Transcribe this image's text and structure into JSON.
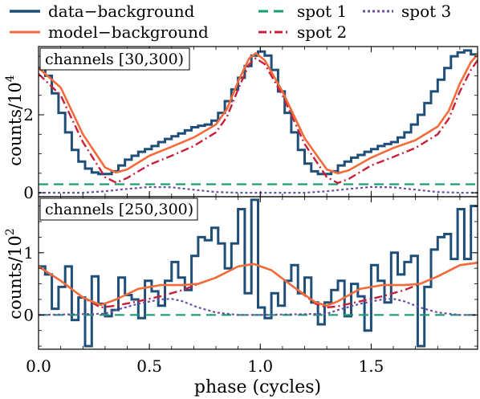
{
  "legend": {
    "placement": "top",
    "entries": [
      {
        "key": "data",
        "label": "data−background",
        "color": "#1f4e79",
        "style": "steps"
      },
      {
        "key": "model",
        "label": "model−background",
        "color": "#f26b3a",
        "style": "solid"
      },
      {
        "key": "spot1",
        "label": "spot 1",
        "color": "#1a9c74",
        "style": "dashed"
      },
      {
        "key": "spot2",
        "label": "spot 2",
        "color": "#c81f3a",
        "style": "dashdot"
      },
      {
        "key": "spot3",
        "label": "spot 3",
        "color": "#6a4fa5",
        "style": "dotted"
      }
    ]
  },
  "xlabel": "phase (cycles)",
  "chart_data": [
    {
      "type": "line",
      "panel_label": "channels [30,300)",
      "ylabel": "counts/10",
      "ylabel_exp": "4",
      "xlim": [
        0.0,
        1.98
      ],
      "ylim": [
        -0.1,
        3.75
      ],
      "yticks": [
        {
          "value": 0,
          "label": "0"
        },
        {
          "value": 2,
          "label": "2"
        }
      ],
      "xticks": [
        {
          "value": 0.0,
          "label": "0.0"
        },
        {
          "value": 0.5,
          "label": "0.5"
        },
        {
          "value": 1.0,
          "label": "1.0"
        },
        {
          "value": 1.5,
          "label": "1.5"
        }
      ],
      "data_steps": {
        "x0": 0.0,
        "dx": 0.03,
        "values": [
          3.2,
          3.0,
          2.55,
          2.05,
          1.55,
          1.1,
          0.8,
          0.62,
          0.52,
          0.48,
          0.48,
          0.55,
          0.7,
          0.85,
          0.95,
          1.05,
          1.12,
          1.2,
          1.3,
          1.38,
          1.45,
          1.52,
          1.6,
          1.68,
          1.72,
          1.75,
          1.85,
          2.05,
          2.35,
          2.65,
          2.95,
          3.25,
          3.52,
          3.62,
          3.52,
          3.15,
          2.6,
          2.05,
          1.55,
          1.1,
          0.75,
          0.55,
          0.48,
          0.48,
          0.55,
          0.7,
          0.8,
          0.9,
          0.97,
          1.05,
          1.12,
          1.2,
          1.25,
          1.3,
          1.42,
          1.55,
          1.75,
          2.0,
          2.3,
          2.6,
          2.9,
          3.2,
          3.5,
          3.6,
          3.65,
          3.55
        ]
      },
      "model": {
        "x": [
          0.0,
          0.1,
          0.2,
          0.3,
          0.35,
          0.4,
          0.5,
          0.6,
          0.7,
          0.8,
          0.85,
          0.9,
          0.95,
          0.98,
          1.02,
          1.1,
          1.2,
          1.3,
          1.35,
          1.4,
          1.5,
          1.6,
          1.7,
          1.8,
          1.85,
          1.9,
          1.95,
          1.98
        ],
        "y": [
          3.2,
          2.7,
          1.5,
          0.65,
          0.52,
          0.6,
          0.95,
          1.18,
          1.42,
          1.75,
          2.15,
          2.85,
          3.45,
          3.58,
          3.4,
          2.6,
          1.4,
          0.6,
          0.5,
          0.58,
          0.9,
          1.15,
          1.35,
          1.7,
          2.1,
          2.8,
          3.35,
          3.55
        ]
      },
      "spot1": {
        "x": [
          0.0,
          1.98
        ],
        "y": [
          0.22,
          0.22
        ]
      },
      "spot2": {
        "x": [
          0.0,
          0.1,
          0.2,
          0.3,
          0.35,
          0.4,
          0.5,
          0.6,
          0.7,
          0.8,
          0.85,
          0.9,
          0.95,
          0.98,
          1.02,
          1.1,
          1.2,
          1.3,
          1.35,
          1.4,
          1.5,
          1.6,
          1.7,
          1.8,
          1.85,
          1.9,
          1.95,
          1.98
        ],
        "y": [
          3.05,
          2.5,
          1.3,
          0.4,
          0.26,
          0.38,
          0.72,
          0.95,
          1.2,
          1.55,
          1.95,
          2.65,
          3.3,
          3.45,
          3.3,
          2.5,
          1.25,
          0.4,
          0.25,
          0.36,
          0.7,
          0.92,
          1.15,
          1.5,
          1.9,
          2.6,
          3.15,
          3.4
        ]
      },
      "spot3": {
        "x": [
          0.0,
          0.2,
          0.3,
          0.4,
          0.5,
          0.6,
          0.7,
          0.8,
          0.9,
          1.0,
          1.2,
          1.3,
          1.4,
          1.5,
          1.6,
          1.7,
          1.8,
          1.9,
          1.98
        ],
        "y": [
          0.0,
          0.0,
          0.04,
          0.1,
          0.15,
          0.14,
          0.08,
          0.02,
          0.0,
          0.0,
          0.0,
          0.04,
          0.1,
          0.15,
          0.14,
          0.08,
          0.02,
          0.0,
          0.0
        ]
      }
    },
    {
      "type": "line",
      "panel_label": "channels [250,300)",
      "ylabel": "counts/10",
      "ylabel_exp": "2",
      "xlim": [
        0.0,
        1.98
      ],
      "ylim": [
        -0.55,
        1.9
      ],
      "yticks": [
        {
          "value": 0,
          "label": "0"
        },
        {
          "value": 1,
          "label": "1"
        }
      ],
      "xticks": [
        {
          "value": 0.0,
          "label": "0.0"
        },
        {
          "value": 0.5,
          "label": "0.5"
        },
        {
          "value": 1.0,
          "label": "1.0"
        },
        {
          "value": 1.5,
          "label": "1.5"
        }
      ],
      "data_steps": {
        "x0": 0.0,
        "dx": 0.03,
        "values": [
          0.78,
          0.65,
          0.1,
          0.45,
          0.78,
          -0.08,
          0.28,
          -0.5,
          0.62,
          0.18,
          -0.02,
          0.08,
          0.6,
          0.32,
          0.25,
          -0.05,
          0.55,
          0.38,
          0.15,
          0.55,
          0.85,
          0.6,
          0.4,
          0.95,
          1.25,
          1.2,
          1.4,
          1.15,
          0.75,
          1.15,
          1.7,
          0.35,
          1.85,
          0.12,
          -0.05,
          0.35,
          0.15,
          0.55,
          0.8,
          0.35,
          0.6,
          0.2,
          -0.15,
          0.2,
          0.4,
          0.55,
          -0.02,
          0.5,
          0.3,
          -0.25,
          0.8,
          0.55,
          0.2,
          1.0,
          0.65,
          0.85,
          0.95,
          -0.5,
          0.45,
          1.05,
          1.25,
          1.3,
          0.9,
          1.7,
          0.9,
          1.75
        ]
      },
      "model": {
        "x": [
          0.0,
          0.1,
          0.2,
          0.28,
          0.35,
          0.45,
          0.55,
          0.65,
          0.72,
          0.8,
          0.9,
          0.97,
          1.05,
          1.15,
          1.25,
          1.3,
          1.35,
          1.45,
          1.55,
          1.65,
          1.72,
          1.8,
          1.9,
          1.98
        ],
        "y": [
          0.78,
          0.55,
          0.28,
          0.16,
          0.25,
          0.42,
          0.48,
          0.48,
          0.5,
          0.6,
          0.78,
          0.82,
          0.72,
          0.45,
          0.2,
          0.15,
          0.22,
          0.42,
          0.48,
          0.48,
          0.5,
          0.62,
          0.8,
          0.84
        ]
      },
      "spot1": {
        "x": [
          0.0,
          1.98
        ],
        "y": [
          0.0,
          0.0
        ]
      },
      "spot2": {
        "x": [
          0.0,
          0.1,
          0.2,
          0.28,
          0.35,
          0.45,
          0.55,
          0.65,
          0.72,
          0.8,
          0.9,
          0.97,
          1.05,
          1.15,
          1.25,
          1.3,
          1.35,
          1.45,
          1.55,
          1.65,
          1.72,
          1.8,
          1.9,
          1.98
        ],
        "y": [
          0.78,
          0.55,
          0.28,
          0.12,
          0.15,
          0.22,
          0.3,
          0.4,
          0.5,
          0.6,
          0.78,
          0.82,
          0.72,
          0.45,
          0.18,
          0.12,
          0.14,
          0.22,
          0.3,
          0.4,
          0.5,
          0.62,
          0.8,
          0.84
        ]
      },
      "spot3": {
        "x": [
          0.0,
          0.3,
          0.35,
          0.45,
          0.55,
          0.6,
          0.65,
          0.72,
          0.8,
          0.9,
          1.0,
          1.3,
          1.35,
          1.45,
          1.55,
          1.6,
          1.65,
          1.72,
          1.8,
          1.9,
          1.98
        ],
        "y": [
          0.0,
          0.02,
          0.08,
          0.18,
          0.25,
          0.26,
          0.22,
          0.12,
          0.04,
          0.0,
          0.0,
          0.02,
          0.08,
          0.18,
          0.25,
          0.26,
          0.22,
          0.12,
          0.04,
          0.0,
          0.0
        ]
      }
    }
  ]
}
